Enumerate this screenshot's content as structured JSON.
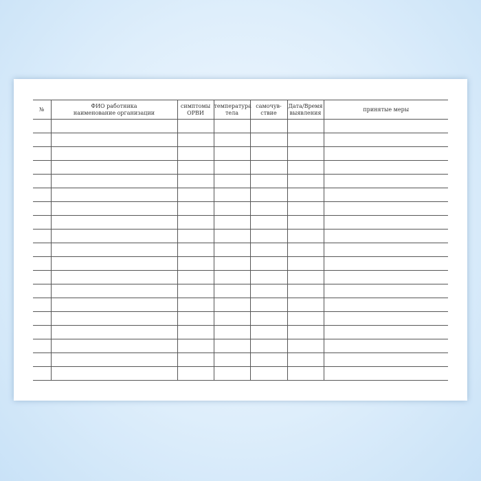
{
  "table": {
    "headers": [
      {
        "line1": "№",
        "line2": ""
      },
      {
        "line1": "ФИО работника",
        "line2": "наименование организации"
      },
      {
        "line1": "симптомы",
        "line2": "ОРВИ"
      },
      {
        "line1": "температура",
        "line2": "тела"
      },
      {
        "line1": "самочув-",
        "line2": "ствие"
      },
      {
        "line1": "Дата/Время",
        "line2": "выявления"
      },
      {
        "line1": "принятые меры",
        "line2": ""
      }
    ],
    "row_count": 19
  }
}
